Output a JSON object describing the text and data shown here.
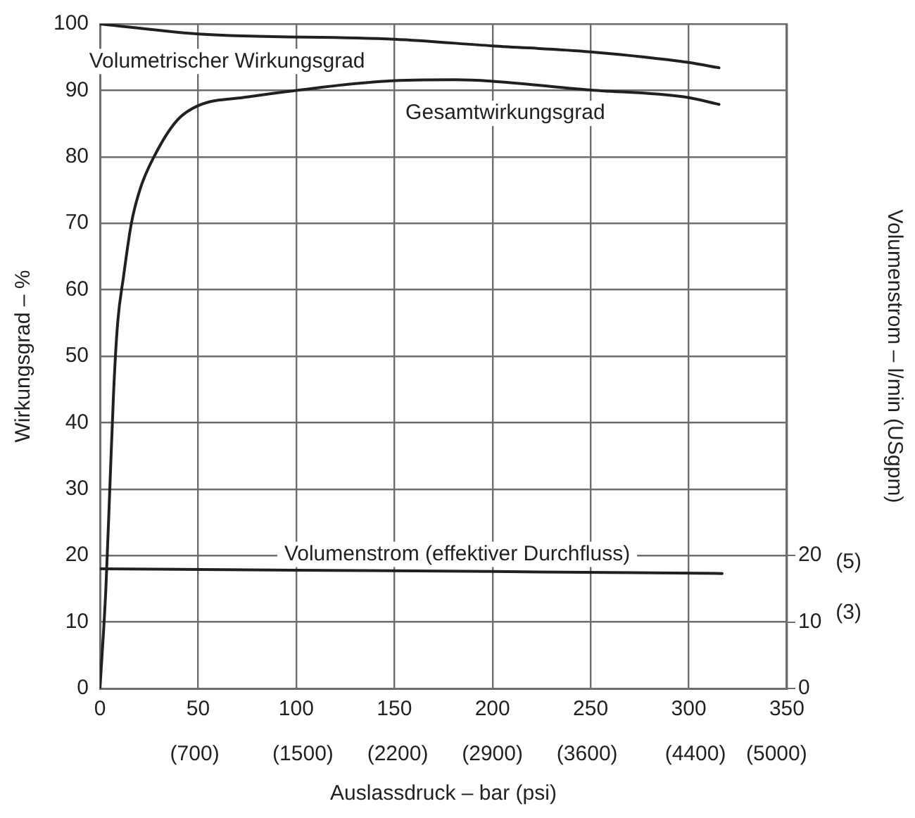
{
  "chart_data": {
    "type": "line",
    "xlabel": "Auslassdruck – bar (psi)",
    "ylabel": "Wirkungsgrad – %",
    "y2label": "Volumenstrom – l/min (USgpm)",
    "xlim": [
      0,
      350
    ],
    "xticks": [
      0,
      50,
      100,
      150,
      200,
      250,
      300,
      350
    ],
    "x2lim": [
      0,
      5076
    ],
    "x2ticks": [
      {
        "value": 700,
        "label": "(700)"
      },
      {
        "value": 1500,
        "label": "(1500)"
      },
      {
        "value": 2200,
        "label": "(2200)"
      },
      {
        "value": 2900,
        "label": "(2900)"
      },
      {
        "value": 3600,
        "label": "(3600)"
      },
      {
        "value": 4400,
        "label": "(4400)"
      },
      {
        "value": 5000,
        "label": "(5000)"
      }
    ],
    "ylim": [
      0,
      100
    ],
    "yticks": [
      0,
      10,
      20,
      30,
      40,
      50,
      60,
      70,
      80,
      90,
      100
    ],
    "y2lim": [
      0,
      100
    ],
    "y2ticks": [
      0,
      10,
      20
    ],
    "y3lim": [
      0,
      26.4
    ],
    "y3ticks": [
      {
        "value": 3,
        "label": "(3)"
      },
      {
        "value": 5,
        "label": "(5)"
      }
    ],
    "grid": true,
    "legend": false,
    "marker": "none",
    "line_style": "solid",
    "series": [
      {
        "name": "Volumetrischer Wirkungsgrad",
        "color": "#231f20",
        "x": [
          0,
          50,
          150,
          200,
          250,
          300,
          315.4
        ],
        "values": [
          100,
          98.5,
          97.7,
          96.7,
          95.8,
          94.2,
          93.4
        ]
      },
      {
        "name": "Gesamtwirkungsgrad",
        "color": "#231f20",
        "x": [
          0,
          3,
          5,
          7,
          9,
          12,
          16,
          20.5,
          27.5,
          39,
          50,
          75,
          100,
          146,
          181,
          199,
          248,
          298,
          315.4
        ],
        "values": [
          0,
          15,
          30,
          45,
          55,
          62,
          70,
          75.2,
          80,
          85.4,
          87.7,
          89,
          90,
          91.4,
          91.6,
          91.4,
          90.1,
          89,
          87.9
        ]
      },
      {
        "name": "Volumenstrom (effektiver Durchfluss)",
        "color": "#231f20",
        "x": [
          0,
          100,
          200,
          317
        ],
        "values": [
          18,
          17.8,
          17.6,
          17.3
        ]
      }
    ]
  }
}
